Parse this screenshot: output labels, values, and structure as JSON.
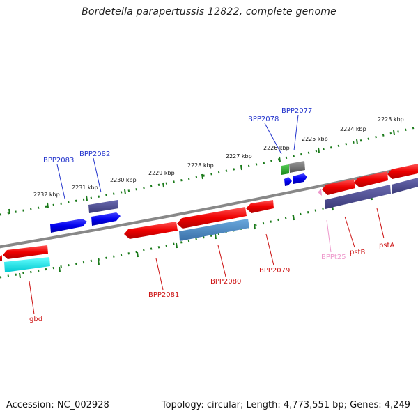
{
  "title": "Bordetella parapertussis 12822, complete genome",
  "footer": {
    "accession": "Accession: NC_002928",
    "topology": "Topology: circular; Length: 4,773,551 bp; Genes: 4,249"
  },
  "ticks": [
    "2223 kbp",
    "2224 kbp",
    "2225 kbp",
    "2226 kbp",
    "2227 kbp",
    "2228 kbp",
    "2229 kbp",
    "2230 kbp",
    "2231 kbp",
    "2232 kbp"
  ],
  "gene_labels": {
    "bpp2077": "BPP2077",
    "bpp2078": "BPP2078",
    "bpp2082": "BPP2082",
    "bpp2083": "BPP2083",
    "bpp2079": "BPP2079",
    "bpp2080": "BPP2080",
    "bpp2081": "BPP2081",
    "gbd": "gbd",
    "bppt25": "BPPt25",
    "pstb": "pstB",
    "psta": "pstA"
  },
  "colors": {
    "forward_cds": "#0000ee",
    "reverse_cds": "#ee0000",
    "label_forward": "#2233cc",
    "label_reverse": "#cc1111",
    "label_trna": "#ee99cc",
    "backbone": "#808080",
    "tick": "#1a7a1a",
    "feature_purple": "#4a4a8c",
    "feature_steel": "#4a86c0",
    "feature_cyan": "#00e6ee",
    "feature_green": "#22aa22",
    "feature_grey": "#6a6a6a"
  }
}
